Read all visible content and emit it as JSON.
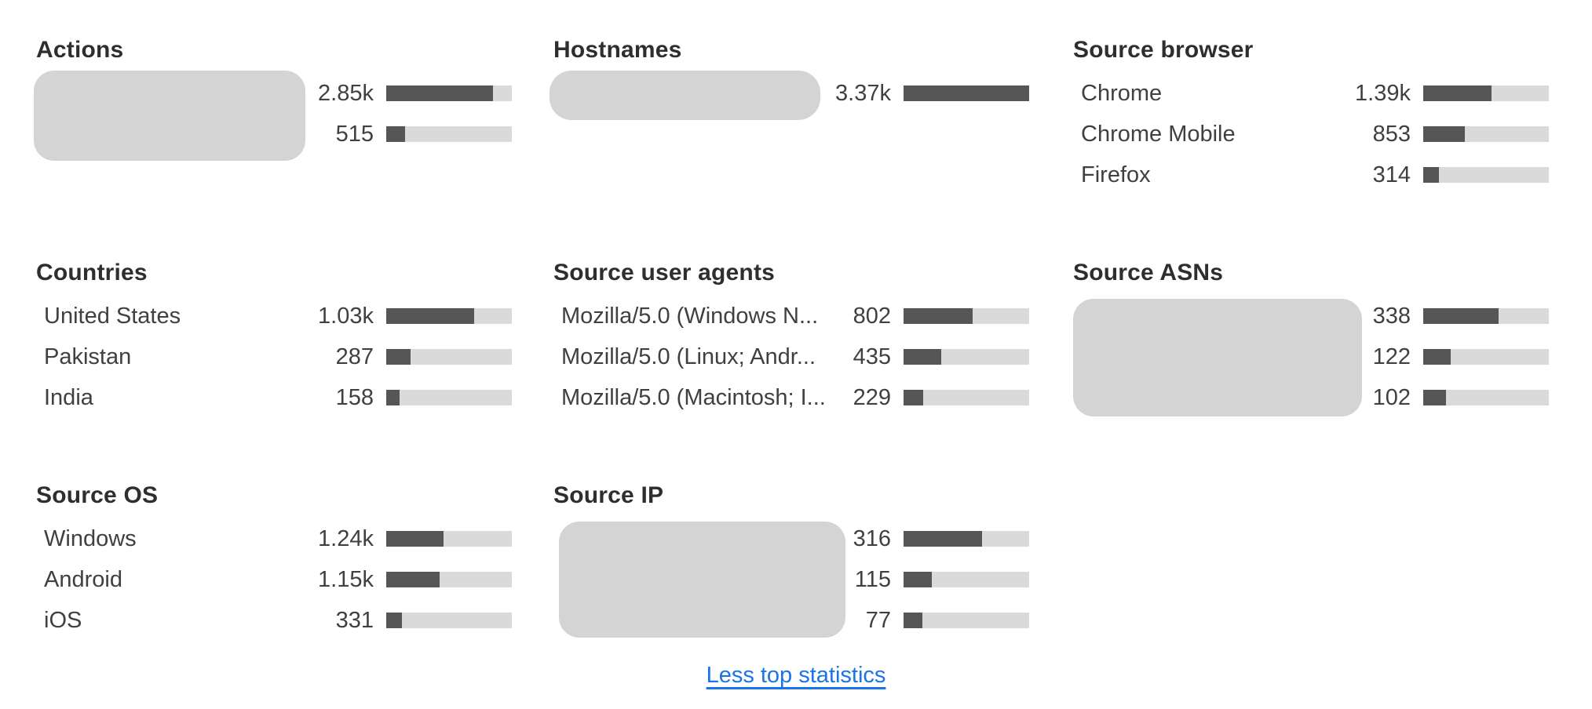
{
  "colors": {
    "background": "#ffffff",
    "bar_fill": "#565656",
    "bar_track": "#dadada",
    "redaction_box": "#d4d4d4",
    "title_text": "#2e2e2e",
    "body_text": "#404040",
    "link": "#1a73e8"
  },
  "sections": [
    {
      "id": "actions",
      "title": "Actions",
      "redacted_label_area": true,
      "rows": [
        {
          "label": "",
          "redacted": true,
          "value": "2.85k",
          "share_pct": 84.7
        },
        {
          "label": "",
          "redacted": true,
          "value": "515",
          "share_pct": 15.3
        }
      ]
    },
    {
      "id": "hostnames",
      "title": "Hostnames",
      "redacted_label_area": true,
      "rows": [
        {
          "label": "",
          "redacted": true,
          "value": "3.37k",
          "share_pct": 100
        }
      ]
    },
    {
      "id": "source_browser",
      "title": "Source browser",
      "redacted_label_area": false,
      "rows": [
        {
          "label": "Chrome",
          "value": "1.39k",
          "share_pct": 54.4
        },
        {
          "label": "Chrome Mobile",
          "value": "853",
          "share_pct": 33.4
        },
        {
          "label": "Firefox",
          "value": "314",
          "share_pct": 12.3
        }
      ]
    },
    {
      "id": "countries",
      "title": "Countries",
      "redacted_label_area": false,
      "rows": [
        {
          "label": "United States",
          "value": "1.03k",
          "share_pct": 69.8
        },
        {
          "label": "Pakistan",
          "value": "287",
          "share_pct": 19.5
        },
        {
          "label": "India",
          "value": "158",
          "share_pct": 10.7
        }
      ]
    },
    {
      "id": "source_user_agents",
      "title": "Source user agents",
      "redacted_label_area": false,
      "rows": [
        {
          "label": "Mozilla/5.0 (Windows N...",
          "value": "802",
          "share_pct": 54.7
        },
        {
          "label": "Mozilla/5.0 (Linux; Andr...",
          "value": "435",
          "share_pct": 29.7
        },
        {
          "label": "Mozilla/5.0 (Macintosh; I...",
          "value": "229",
          "share_pct": 15.6
        }
      ]
    },
    {
      "id": "source_asns",
      "title": "Source ASNs",
      "redacted_label_area": true,
      "rows": [
        {
          "label": "",
          "redacted": true,
          "value": "338",
          "share_pct": 60.1
        },
        {
          "label": "",
          "redacted": true,
          "value": "122",
          "share_pct": 21.7
        },
        {
          "label": "",
          "redacted": true,
          "value": "102",
          "share_pct": 18.1
        }
      ]
    },
    {
      "id": "source_os",
      "title": "Source OS",
      "redacted_label_area": false,
      "rows": [
        {
          "label": "Windows",
          "value": "1.24k",
          "share_pct": 45.6
        },
        {
          "label": "Android",
          "value": "1.15k",
          "share_pct": 42.3
        },
        {
          "label": "iOS",
          "value": "331",
          "share_pct": 12.2
        }
      ]
    },
    {
      "id": "source_ip",
      "title": "Source IP",
      "redacted_label_area": true,
      "rows": [
        {
          "label": "",
          "redacted": true,
          "value": "316",
          "share_pct": 62.2
        },
        {
          "label": "",
          "redacted": true,
          "value": "115",
          "share_pct": 22.6
        },
        {
          "label": "",
          "redacted": true,
          "value": "77",
          "share_pct": 15.2
        }
      ]
    }
  ],
  "footer": {
    "toggle_link_label": "Less top statistics"
  },
  "chart_data": [
    {
      "type": "bar",
      "title": "Actions",
      "categories": [
        "",
        ""
      ],
      "values": [
        2850,
        515
      ],
      "value_labels": [
        "2.85k",
        "515"
      ],
      "share_pct": [
        84.7,
        15.3
      ]
    },
    {
      "type": "bar",
      "title": "Hostnames",
      "categories": [
        ""
      ],
      "values": [
        3370
      ],
      "value_labels": [
        "3.37k"
      ],
      "share_pct": [
        100
      ]
    },
    {
      "type": "bar",
      "title": "Source browser",
      "categories": [
        "Chrome",
        "Chrome Mobile",
        "Firefox"
      ],
      "values": [
        1390,
        853,
        314
      ],
      "value_labels": [
        "1.39k",
        "853",
        "314"
      ],
      "share_pct": [
        54.4,
        33.4,
        12.3
      ]
    },
    {
      "type": "bar",
      "title": "Countries",
      "categories": [
        "United States",
        "Pakistan",
        "India"
      ],
      "values": [
        1030,
        287,
        158
      ],
      "value_labels": [
        "1.03k",
        "287",
        "158"
      ],
      "share_pct": [
        69.8,
        19.5,
        10.7
      ]
    },
    {
      "type": "bar",
      "title": "Source user agents",
      "categories": [
        "Mozilla/5.0 (Windows N...",
        "Mozilla/5.0 (Linux; Andr...",
        "Mozilla/5.0 (Macintosh; I..."
      ],
      "values": [
        802,
        435,
        229
      ],
      "value_labels": [
        "802",
        "435",
        "229"
      ],
      "share_pct": [
        54.7,
        29.7,
        15.6
      ]
    },
    {
      "type": "bar",
      "title": "Source ASNs",
      "categories": [
        "",
        "",
        ""
      ],
      "values": [
        338,
        122,
        102
      ],
      "value_labels": [
        "338",
        "122",
        "102"
      ],
      "share_pct": [
        60.1,
        21.7,
        18.1
      ]
    },
    {
      "type": "bar",
      "title": "Source OS",
      "categories": [
        "Windows",
        "Android",
        "iOS"
      ],
      "values": [
        1240,
        1150,
        331
      ],
      "value_labels": [
        "1.24k",
        "1.15k",
        "331"
      ],
      "share_pct": [
        45.6,
        42.3,
        12.2
      ]
    },
    {
      "type": "bar",
      "title": "Source IP",
      "categories": [
        "",
        "",
        ""
      ],
      "values": [
        316,
        115,
        77
      ],
      "value_labels": [
        "316",
        "115",
        "77"
      ],
      "share_pct": [
        62.2,
        22.6,
        15.2
      ]
    }
  ]
}
